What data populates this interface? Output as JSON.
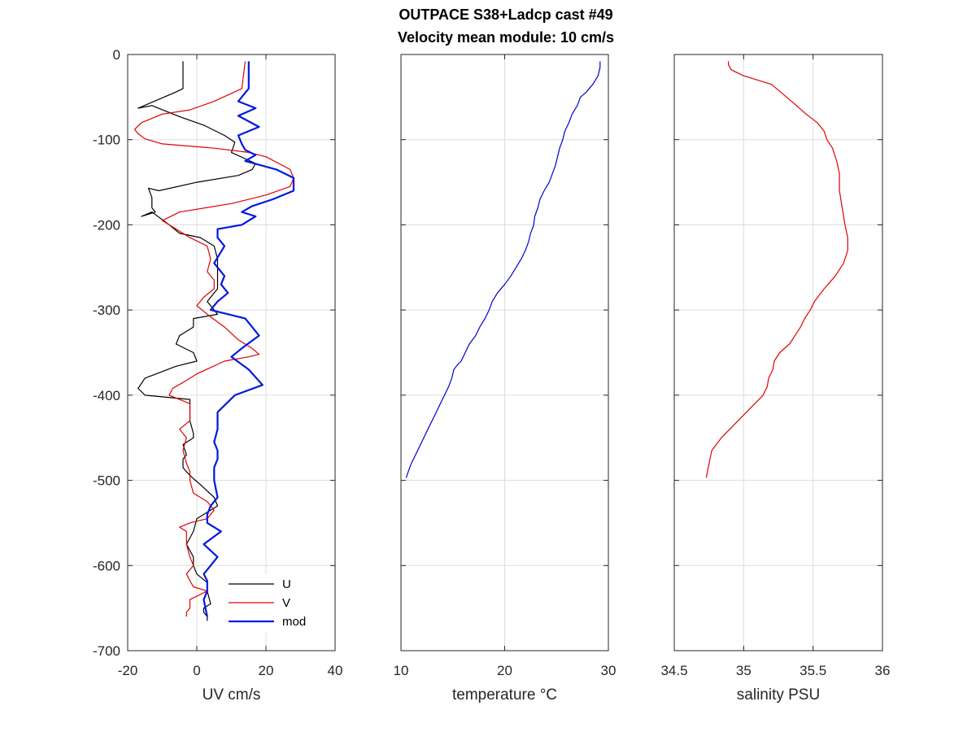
{
  "figure": {
    "title_line1": "OUTPACE S38+Ladcp cast #49",
    "title_line2": "Velocity mean module:  10 cm/s"
  },
  "chart_data": [
    {
      "type": "line",
      "xlabel": "UV cm/s",
      "ylabel": "",
      "xlim": [
        -20,
        40
      ],
      "ylim": [
        -700,
        0
      ],
      "xticks": [
        -20,
        0,
        20,
        40
      ],
      "yticks": [
        0,
        -100,
        -200,
        -300,
        -400,
        -500,
        -600,
        -700
      ],
      "grid": true,
      "legend": {
        "placement": "bottom-right",
        "entries": [
          "U",
          "V",
          "mod"
        ]
      },
      "series": [
        {
          "name": "U",
          "color": "#000000",
          "width": 1.2,
          "x": [
            -4,
            -4,
            -4,
            -6,
            -17,
            -13,
            -5,
            2,
            8,
            11,
            10,
            17,
            16,
            12,
            0,
            -11,
            -14,
            -13,
            -13,
            -12,
            -16,
            -13,
            -8,
            -5,
            1,
            5,
            6,
            6,
            3,
            5,
            6,
            -1,
            -1,
            -5,
            -6,
            -1,
            0,
            -6,
            -15,
            -17,
            -15,
            -2,
            -2,
            -2,
            -1,
            -1,
            -4,
            -3,
            -4,
            -4,
            -3,
            -1,
            1,
            5,
            6,
            0,
            -1,
            -3,
            -1,
            -1,
            0,
            3,
            3,
            4,
            2,
            2,
            3,
            3
          ],
          "y": [
            -8,
            -18,
            -40,
            -44,
            -63,
            -60,
            -73,
            -83,
            -95,
            -103,
            -115,
            -128,
            -135,
            -142,
            -150,
            -160,
            -157,
            -168,
            -180,
            -185,
            -190,
            -185,
            -200,
            -210,
            -215,
            -225,
            -240,
            -275,
            -290,
            -300,
            -305,
            -310,
            -320,
            -330,
            -340,
            -350,
            -360,
            -366,
            -380,
            -392,
            -400,
            -405,
            -420,
            -430,
            -445,
            -450,
            -458,
            -470,
            -475,
            -485,
            -490,
            -498,
            -505,
            -520,
            -530,
            -545,
            -560,
            -575,
            -590,
            -600,
            -610,
            -620,
            -630,
            -645,
            -650,
            -655,
            -660,
            -665
          ]
        },
        {
          "name": "V",
          "color": "#e00000",
          "width": 1.2,
          "x": [
            14,
            13,
            5,
            -2,
            -10,
            -16,
            -18,
            -17,
            -15,
            -10,
            5,
            15,
            20,
            27,
            28,
            27,
            20,
            10,
            -5,
            -10,
            -8,
            -2,
            3,
            4,
            3,
            5,
            5,
            2,
            0,
            3,
            8,
            12,
            16,
            18,
            15,
            8,
            0,
            -4,
            -7,
            -8,
            -2,
            -2,
            -2,
            -5,
            -3,
            -4,
            -3,
            -2,
            -2,
            -1,
            3,
            5,
            3,
            -2,
            -5,
            -3,
            -3,
            -2,
            -1,
            -3,
            -2,
            -1,
            3,
            -2,
            -2,
            -3,
            -3
          ],
          "y": [
            -8,
            -40,
            -55,
            -65,
            -70,
            -80,
            -88,
            -93,
            -99,
            -105,
            -110,
            -115,
            -120,
            -135,
            -145,
            -155,
            -165,
            -175,
            -185,
            -195,
            -200,
            -215,
            -225,
            -240,
            -255,
            -265,
            -275,
            -285,
            -295,
            -305,
            -320,
            -335,
            -345,
            -352,
            -355,
            -360,
            -375,
            -385,
            -392,
            -400,
            -410,
            -420,
            -430,
            -440,
            -450,
            -465,
            -480,
            -490,
            -500,
            -515,
            -525,
            -535,
            -545,
            -550,
            -555,
            -560,
            -575,
            -590,
            -600,
            -610,
            -618,
            -625,
            -630,
            -640,
            -650,
            -655,
            -660
          ]
        },
        {
          "name": "mod",
          "color": "#0018e0",
          "width": 2.2,
          "x": [
            15,
            15,
            14,
            12,
            17,
            12,
            18,
            12,
            13,
            14,
            17,
            14,
            23,
            28,
            28,
            22,
            16,
            13,
            17,
            13,
            6,
            6,
            8,
            5,
            8,
            7,
            9,
            6,
            4,
            14,
            16,
            18,
            13,
            10,
            15,
            19,
            11,
            6,
            6,
            5,
            6,
            6,
            5,
            5,
            6,
            4,
            3,
            3,
            7,
            2,
            6,
            4,
            2,
            3,
            3,
            2,
            3
          ],
          "y": [
            -8,
            -40,
            -45,
            -55,
            -63,
            -72,
            -85,
            -95,
            -105,
            -112,
            -118,
            -125,
            -135,
            -145,
            -160,
            -170,
            -178,
            -185,
            -190,
            -200,
            -205,
            -215,
            -225,
            -245,
            -260,
            -270,
            -280,
            -290,
            -300,
            -310,
            -320,
            -330,
            -345,
            -355,
            -370,
            -388,
            -400,
            -420,
            -440,
            -455,
            -465,
            -475,
            -485,
            -500,
            -520,
            -530,
            -540,
            -550,
            -560,
            -575,
            -590,
            -600,
            -610,
            -618,
            -630,
            -640,
            -660
          ]
        }
      ]
    },
    {
      "type": "line",
      "xlabel": "temperature °C",
      "ylabel": "",
      "xlim": [
        10,
        30
      ],
      "ylim": [
        -700,
        0
      ],
      "xticks": [
        10,
        20,
        30
      ],
      "yticks": [
        0,
        -100,
        -200,
        -300,
        -400,
        -500,
        -600,
        -700
      ],
      "grid": true,
      "series": [
        {
          "color": "#0000d0",
          "width": 1.2,
          "x": [
            29.2,
            29.2,
            29.0,
            28.5,
            27.8,
            27.3,
            27.0,
            26.5,
            26.2,
            25.8,
            25.6,
            25.3,
            25.1,
            24.9,
            24.6,
            24.3,
            23.8,
            23.4,
            23.2,
            22.9,
            22.8,
            22.5,
            22.3,
            22.0,
            21.6,
            21.1,
            20.6,
            20.0,
            19.3,
            18.8,
            18.5,
            18.1,
            17.6,
            17.2,
            16.6,
            16.2,
            15.8,
            15.4,
            15.1,
            14.9,
            14.6,
            14.2,
            13.4,
            12.6,
            12.0,
            11.4,
            11.0,
            10.7,
            10.5
          ],
          "y": [
            -8,
            -15,
            -25,
            -35,
            -45,
            -50,
            -60,
            -70,
            -80,
            -90,
            -100,
            -110,
            -120,
            -130,
            -140,
            -150,
            -160,
            -170,
            -180,
            -190,
            -200,
            -210,
            -220,
            -230,
            -240,
            -250,
            -260,
            -270,
            -280,
            -290,
            -300,
            -310,
            -320,
            -330,
            -340,
            -350,
            -360,
            -365,
            -370,
            -380,
            -390,
            -400,
            -420,
            -440,
            -455,
            -470,
            -480,
            -490,
            -497
          ]
        }
      ]
    },
    {
      "type": "line",
      "xlabel": "salinity PSU",
      "ylabel": "",
      "xlim": [
        34.5,
        36
      ],
      "xticks": [
        34.5,
        35,
        35.5,
        36
      ],
      "ylim": [
        -700,
        0
      ],
      "yticks": [
        0,
        -100,
        -200,
        -300,
        -400,
        -500,
        -600,
        -700
      ],
      "grid": true,
      "series": [
        {
          "color": "#e00000",
          "width": 1.2,
          "x": [
            34.89,
            34.89,
            34.91,
            35.0,
            35.2,
            35.31,
            35.38,
            35.45,
            35.53,
            35.58,
            35.6,
            35.64,
            35.67,
            35.69,
            35.69,
            35.71,
            35.73,
            35.75,
            35.75,
            35.72,
            35.66,
            35.58,
            35.51,
            35.48,
            35.44,
            35.41,
            35.37,
            35.33,
            35.26,
            35.22,
            35.21,
            35.18,
            35.17,
            35.14,
            35.08,
            35.02,
            34.96,
            34.9,
            34.84,
            34.77,
            34.73
          ],
          "y": [
            -8,
            -12,
            -18,
            -25,
            -35,
            -50,
            -60,
            -70,
            -80,
            -90,
            -100,
            -110,
            -125,
            -140,
            -160,
            -180,
            -200,
            -215,
            -230,
            -245,
            -260,
            -275,
            -290,
            -300,
            -310,
            -320,
            -330,
            -340,
            -350,
            -360,
            -370,
            -380,
            -390,
            -400,
            -410,
            -420,
            -430,
            -440,
            -450,
            -465,
            -497
          ]
        }
      ]
    }
  ]
}
